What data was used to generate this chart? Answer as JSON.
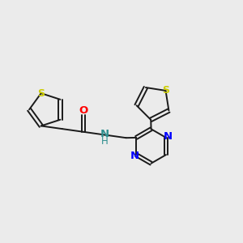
{
  "bg_color": "#EBEBEB",
  "bond_color": "#1a1a1a",
  "S_color": "#CCCC00",
  "O_color": "#FF0000",
  "N_color": "#0000FF",
  "NH_color": "#2F8F8F",
  "bond_width": 1.4,
  "figsize": [
    3.0,
    3.0
  ],
  "dpi": 100,
  "xlim": [
    0,
    10
  ],
  "ylim": [
    1,
    9
  ]
}
